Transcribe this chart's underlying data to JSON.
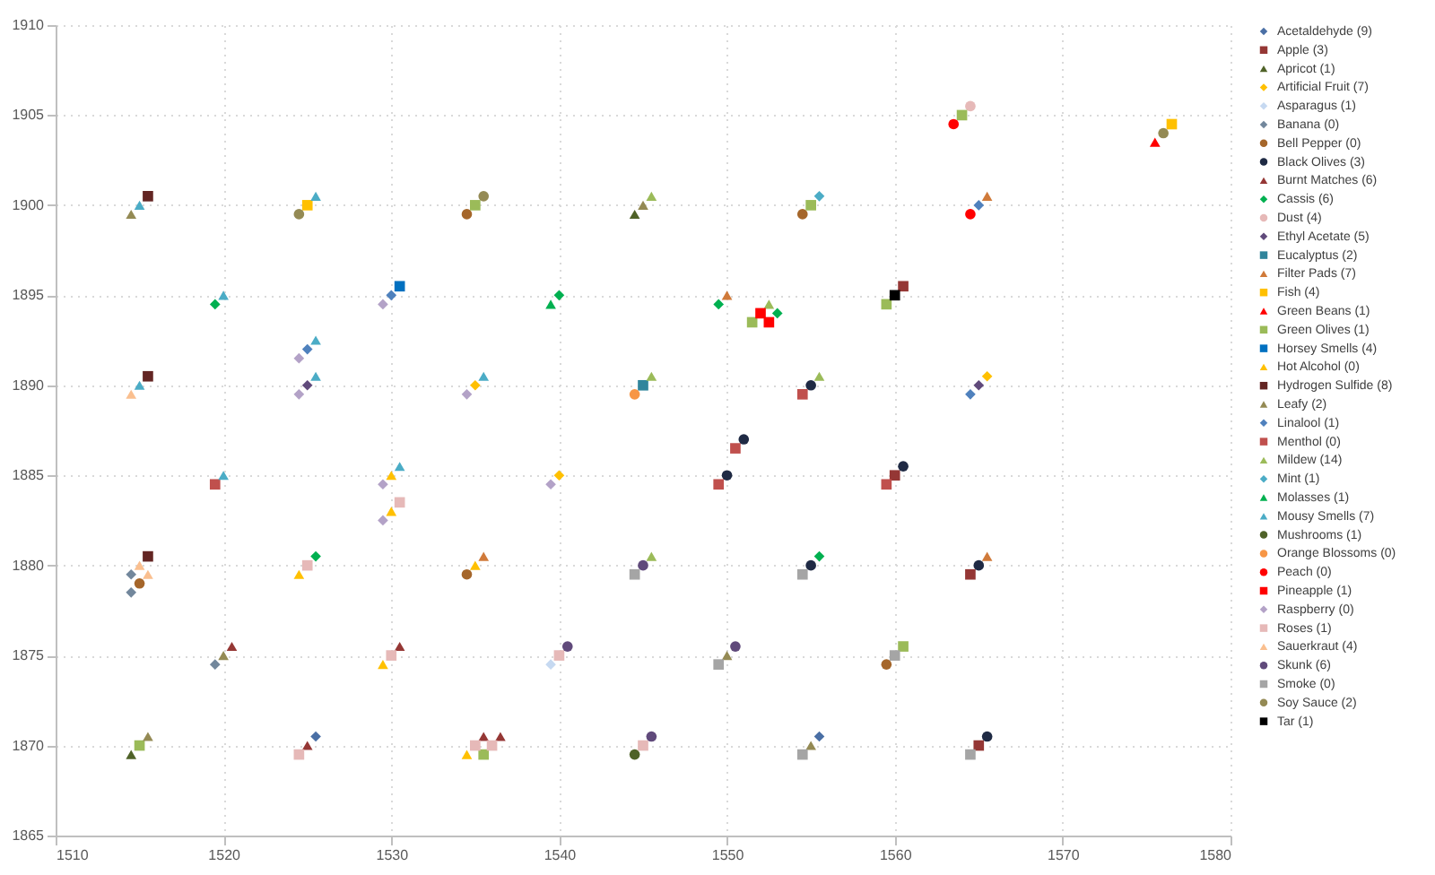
{
  "chart_data": {
    "type": "scatter",
    "xlim": [
      1510,
      1580
    ],
    "ylim": [
      1865,
      1910
    ],
    "xticks": [
      1510,
      1520,
      1530,
      1540,
      1550,
      1560,
      1570,
      1580
    ],
    "yticks": [
      1865,
      1870,
      1875,
      1880,
      1885,
      1890,
      1895,
      1900,
      1905,
      1910
    ],
    "grid": true,
    "legend": "right",
    "series": [
      {
        "name": "Acetaldehyde (9)",
        "color": "#4a6fa5",
        "marker": "diamond",
        "x": [
          1525.5,
          1555.5
        ],
        "values": [
          1870.5,
          1870.5
        ]
      },
      {
        "name": "Apple (3)",
        "color": "#953735",
        "marker": "square",
        "x": [
          1560.5,
          1560,
          1564.5,
          1565
        ],
        "values": [
          1895.5,
          1885,
          1879.5,
          1870
        ]
      },
      {
        "name": "Apricot (1)",
        "color": "#4f6228",
        "marker": "triangle",
        "x": [
          1544.5,
          1514.5
        ],
        "values": [
          1899.5,
          1869.5
        ]
      },
      {
        "name": "Artificial Fruit (7)",
        "color": "#ffc000",
        "marker": "diamond",
        "x": [
          1535,
          1565.5,
          1540
        ],
        "values": [
          1890,
          1890.5,
          1885
        ]
      },
      {
        "name": "Asparagus (1)",
        "color": "#c6d9f1",
        "marker": "diamond",
        "x": [
          1539.5
        ],
        "values": [
          1874.5
        ]
      },
      {
        "name": "Banana (0)",
        "color": "#72879c",
        "marker": "diamond",
        "x": [
          1514.5,
          1514.5,
          1519.5
        ],
        "values": [
          1879.5,
          1878.5,
          1874.5
        ]
      },
      {
        "name": "Bell Pepper (0)",
        "color": "#a5662a",
        "marker": "circle",
        "x": [
          1534.5,
          1554.5,
          1515,
          1534.5,
          1559.5
        ],
        "values": [
          1899.5,
          1899.5,
          1879,
          1879.5,
          1874.5
        ]
      },
      {
        "name": "Black Olives (3)",
        "color": "#1f2a44",
        "marker": "circle",
        "x": [
          1555,
          1550,
          1551,
          1560.5,
          1555,
          1565,
          1565.5
        ],
        "values": [
          1890,
          1885,
          1887,
          1885.5,
          1880,
          1880,
          1870.5
        ]
      },
      {
        "name": "Burnt Matches (6)",
        "color": "#953735",
        "marker": "triangle",
        "x": [
          1520.5,
          1530.5,
          1525,
          1535.5,
          1536.5
        ],
        "values": [
          1875.5,
          1875.5,
          1870,
          1870.5,
          1870.5
        ]
      },
      {
        "name": "Cassis (6)",
        "color": "#00b050",
        "marker": "diamond",
        "x": [
          1519.5,
          1540,
          1549.5,
          1553,
          1525.5,
          1555.5
        ],
        "values": [
          1894.5,
          1895,
          1894.5,
          1894,
          1880.5,
          1880.5
        ]
      },
      {
        "name": "Dust (4)",
        "color": "#e6b9b8",
        "marker": "circle",
        "x": [
          1564.5
        ],
        "values": [
          1905.5
        ]
      },
      {
        "name": "Ethyl Acetate (5)",
        "color": "#604a7b",
        "marker": "diamond",
        "x": [
          1525,
          1565
        ],
        "values": [
          1890,
          1890
        ]
      },
      {
        "name": "Eucalyptus (2)",
        "color": "#31859c",
        "marker": "square",
        "x": [
          1545
        ],
        "values": [
          1890
        ]
      },
      {
        "name": "Filter Pads (7)",
        "color": "#d07a3a",
        "marker": "triangle",
        "x": [
          1565.5,
          1550,
          1535.5,
          1565.5
        ],
        "values": [
          1900.5,
          1895,
          1880.5,
          1880.5
        ]
      },
      {
        "name": "Fish (4)",
        "color": "#ffc000",
        "marker": "square",
        "x": [
          1525,
          1576.5
        ],
        "values": [
          1900,
          1904.5
        ]
      },
      {
        "name": "Green Beans (1)",
        "color": "#ff0000",
        "marker": "triangle",
        "x": [
          1575.5
        ],
        "values": [
          1903.5
        ]
      },
      {
        "name": "Green Olives (1)",
        "color": "#9bbb59",
        "marker": "square",
        "x": [
          1535,
          1555,
          1564,
          1551.5,
          1559.5,
          1560.5,
          1515,
          1535.5
        ],
        "values": [
          1900,
          1900,
          1905,
          1893.5,
          1894.5,
          1875.5,
          1870,
          1869.5
        ]
      },
      {
        "name": "Horsey Smells (4)",
        "color": "#0070c0",
        "marker": "square",
        "x": [
          1530.5
        ],
        "values": [
          1895.5
        ]
      },
      {
        "name": "Hot Alcohol (0)",
        "color": "#ffc000",
        "marker": "triangle",
        "x": [
          1530,
          1530,
          1524.5,
          1535,
          1529.5,
          1534.5
        ],
        "values": [
          1885,
          1883,
          1879.5,
          1880,
          1874.5,
          1869.5
        ]
      },
      {
        "name": "Hydrogen Sulfide (8)",
        "color": "#632523",
        "marker": "square",
        "x": [
          1515.5,
          1515.5,
          1515.5
        ],
        "values": [
          1900.5,
          1890.5,
          1880.5
        ]
      },
      {
        "name": "Leafy (2)",
        "color": "#948a54",
        "marker": "triangle",
        "x": [
          1514.5,
          1545,
          1520,
          1550,
          1515.5,
          1555
        ],
        "values": [
          1899.5,
          1900,
          1875,
          1875,
          1870.5,
          1870
        ]
      },
      {
        "name": "Linalool (1)",
        "color": "#4f81bd",
        "marker": "diamond",
        "x": [
          1565,
          1530,
          1525,
          1564.5
        ],
        "values": [
          1900,
          1895,
          1892,
          1889.5
        ]
      },
      {
        "name": "Menthol (0)",
        "color": "#c0504d",
        "marker": "square",
        "x": [
          1554.5,
          1519.5,
          1549.5,
          1550.5,
          1559.5
        ],
        "values": [
          1889.5,
          1884.5,
          1884.5,
          1886.5,
          1884.5
        ]
      },
      {
        "name": "Mildew (14)",
        "color": "#9bbb59",
        "marker": "triangle",
        "x": [
          1545.5,
          1552.5,
          1545.5,
          1555.5,
          1545.5
        ],
        "values": [
          1900.5,
          1894.5,
          1890.5,
          1890.5,
          1880.5
        ]
      },
      {
        "name": "Mint (1)",
        "color": "#4bacc6",
        "marker": "diamond",
        "x": [
          1555.5
        ],
        "values": [
          1900.5
        ]
      },
      {
        "name": "Molasses (1)",
        "color": "#00b050",
        "marker": "triangle",
        "x": [
          1539.5
        ],
        "values": [
          1894.5
        ]
      },
      {
        "name": "Mousy Smells (7)",
        "color": "#4bacc6",
        "marker": "triangle",
        "x": [
          1515,
          1525.5,
          1520,
          1525.5,
          1515,
          1525.5,
          1535.5,
          1520,
          1530.5
        ],
        "values": [
          1900,
          1900.5,
          1895,
          1892.5,
          1890,
          1890.5,
          1890.5,
          1885,
          1885.5
        ]
      },
      {
        "name": "Mushrooms (1)",
        "color": "#4f6228",
        "marker": "circle",
        "x": [
          1544.5
        ],
        "values": [
          1869.5
        ]
      },
      {
        "name": "Orange Blossoms (0)",
        "color": "#f79646",
        "marker": "circle",
        "x": [
          1544.5
        ],
        "values": [
          1889.5
        ]
      },
      {
        "name": "Peach (0)",
        "color": "#ff0000",
        "marker": "circle",
        "x": [
          1563.5,
          1564.5
        ],
        "values": [
          1904.5,
          1899.5
        ]
      },
      {
        "name": "Pineapple (1)",
        "color": "#ff0000",
        "marker": "square",
        "x": [
          1552,
          1552.5
        ],
        "values": [
          1894,
          1893.5
        ]
      },
      {
        "name": "Raspberry (0)",
        "color": "#b3a2c7",
        "marker": "diamond",
        "x": [
          1529.5,
          1524.5,
          1524.5,
          1534.5,
          1529.5,
          1529.5,
          1539.5
        ],
        "values": [
          1894.5,
          1891.5,
          1889.5,
          1889.5,
          1884.5,
          1882.5,
          1884.5
        ]
      },
      {
        "name": "Roses (1)",
        "color": "#e6b9b8",
        "marker": "square",
        "x": [
          1530.5,
          1525,
          1530,
          1540,
          1524.5,
          1535,
          1536,
          1545
        ],
        "values": [
          1883.5,
          1880,
          1875,
          1875,
          1869.5,
          1870,
          1870,
          1870
        ]
      },
      {
        "name": "Sauerkraut (4)",
        "color": "#fabf8f",
        "marker": "triangle",
        "x": [
          1514.5,
          1515,
          1515.5
        ],
        "values": [
          1889.5,
          1880,
          1879.5
        ]
      },
      {
        "name": "Skunk (6)",
        "color": "#604a7b",
        "marker": "circle",
        "x": [
          1545,
          1540.5,
          1550.5,
          1545.5
        ],
        "values": [
          1880,
          1875.5,
          1875.5,
          1870.5
        ]
      },
      {
        "name": "Smoke (0)",
        "color": "#a5a5a5",
        "marker": "square",
        "x": [
          1544.5,
          1554.5,
          1549.5,
          1560,
          1554.5,
          1564.5
        ],
        "values": [
          1879.5,
          1879.5,
          1874.5,
          1875,
          1869.5,
          1869.5
        ]
      },
      {
        "name": "Soy Sauce (2)",
        "color": "#948a54",
        "marker": "circle",
        "x": [
          1524.5,
          1535.5,
          1576
        ],
        "values": [
          1899.5,
          1900.5,
          1904
        ]
      },
      {
        "name": "Tar (1)",
        "color": "#000000",
        "marker": "square",
        "x": [
          1560
        ],
        "values": [
          1895
        ]
      }
    ]
  }
}
